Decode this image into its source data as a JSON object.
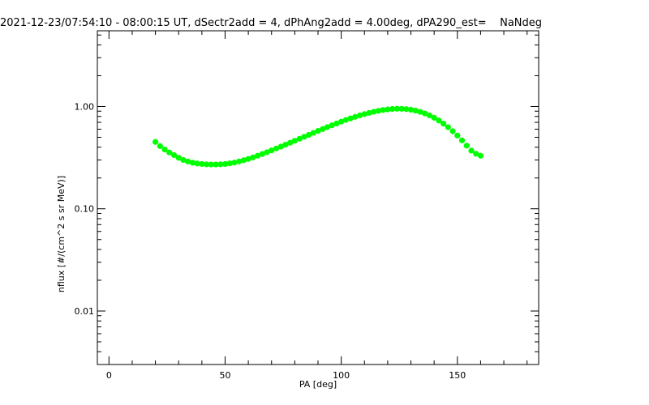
{
  "chart_data": {
    "type": "scatter",
    "title": "2021-12-23/07:54:10 - 08:00:15 UT, dSectr2add = 4, dPhAng2add = 4.00deg, dPA290_est=    NaNdeg",
    "xlabel": "PA [deg]",
    "ylabel": "nflux [#/(cm^2 s sr MeV)]",
    "xlim": [
      -5,
      185
    ],
    "ylim": [
      0.003,
      5.5
    ],
    "y_scale": "log",
    "x_ticks": [
      {
        "value": 0,
        "label": "0"
      },
      {
        "value": 50,
        "label": "50"
      },
      {
        "value": 100,
        "label": "100"
      },
      {
        "value": 150,
        "label": "150"
      }
    ],
    "y_ticks": [
      {
        "value": 0.01,
        "label": "0.01"
      },
      {
        "value": 0.1,
        "label": "0.10"
      },
      {
        "value": 1.0,
        "label": "1.00"
      }
    ],
    "grid": false,
    "marker_color": "#00ff00",
    "series": [
      {
        "x": [
          20,
          22,
          24,
          26,
          28,
          30,
          32,
          34,
          36,
          38,
          40,
          42,
          44,
          46,
          48,
          50,
          52,
          54,
          56,
          58,
          60,
          62,
          64,
          66,
          68,
          70,
          72,
          74,
          76,
          78,
          80,
          82,
          84,
          86,
          88,
          90,
          92,
          94,
          96,
          98,
          100,
          102,
          104,
          106,
          108,
          110,
          112,
          114,
          116,
          118,
          120,
          122,
          124,
          126,
          128,
          130,
          132,
          134,
          136,
          138,
          140,
          142,
          144,
          146,
          148,
          150,
          152,
          154,
          156,
          158,
          160
        ],
        "y": [
          0.45,
          0.41,
          0.38,
          0.355,
          0.335,
          0.315,
          0.3,
          0.29,
          0.282,
          0.277,
          0.274,
          0.272,
          0.271,
          0.271,
          0.272,
          0.274,
          0.278,
          0.283,
          0.29,
          0.298,
          0.307,
          0.318,
          0.33,
          0.343,
          0.357,
          0.372,
          0.388,
          0.405,
          0.423,
          0.442,
          0.462,
          0.483,
          0.505,
          0.528,
          0.552,
          0.577,
          0.602,
          0.628,
          0.655,
          0.682,
          0.71,
          0.738,
          0.765,
          0.792,
          0.818,
          0.843,
          0.866,
          0.888,
          0.907,
          0.924,
          0.937,
          0.946,
          0.95,
          0.949,
          0.942,
          0.93,
          0.911,
          0.886,
          0.855,
          0.818,
          0.776,
          0.73,
          0.68,
          0.628,
          0.574,
          0.52,
          0.466,
          0.414,
          0.37,
          0.345,
          0.33
        ]
      }
    ]
  }
}
